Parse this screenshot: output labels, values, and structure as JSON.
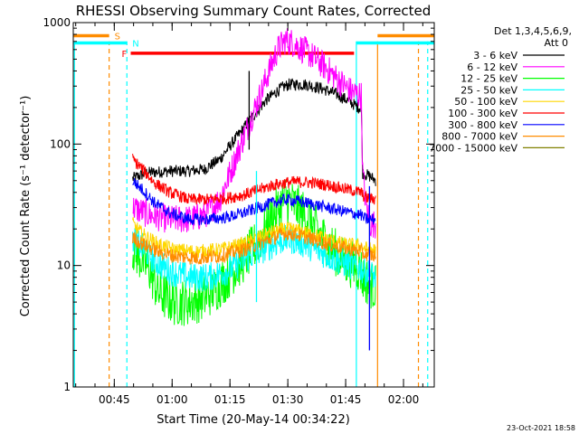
{
  "chart_data": {
    "type": "line",
    "title": "RHESSI Observing Summary Count Rates, Corrected",
    "xlabel": "Start Time (20-May-14 00:34:22)",
    "ylabel": "Corrected Count Rate (s⁻¹ detector⁻¹)",
    "x_unit": "minutes after 00:34:22 UT",
    "xlim": [
      0,
      93.6
    ],
    "ylim": [
      1,
      1000
    ],
    "yscale": "log",
    "yticks": [
      1,
      10,
      100,
      1000
    ],
    "ytick_labels": [
      "1",
      "10",
      "100",
      "1000"
    ],
    "xticks": [
      10.63,
      25.63,
      40.63,
      55.63,
      70.63,
      85.63
    ],
    "xtick_labels": [
      "00:45",
      "01:00",
      "01:15",
      "01:30",
      "01:45",
      "02:00"
    ],
    "legend_header": [
      "Det 1,3,4,5,6,9,",
      "Att 0"
    ],
    "legend_position": "right",
    "timestamp": "23-Oct-2021 18:58",
    "series": [
      {
        "name": "3 - 6 keV",
        "color": "#000000",
        "noise": 0.05,
        "points": [
          [
            15.4,
            52
          ],
          [
            19,
            58
          ],
          [
            25,
            60
          ],
          [
            30,
            60
          ],
          [
            34,
            62
          ],
          [
            38,
            75
          ],
          [
            42,
            110
          ],
          [
            46,
            160
          ],
          [
            50,
            230
          ],
          [
            54,
            290
          ],
          [
            56,
            310
          ],
          [
            60,
            310
          ],
          [
            64,
            290
          ],
          [
            68,
            260
          ],
          [
            71,
            230
          ],
          [
            74,
            200
          ],
          [
            74.7,
            200
          ],
          [
            75,
            58
          ],
          [
            77,
            54
          ],
          [
            78.5,
            50
          ]
        ]
      },
      {
        "name": "6 - 12 keV",
        "color": "#ff00ff",
        "noise": 0.12,
        "points": [
          [
            15.4,
            30
          ],
          [
            20,
            26
          ],
          [
            25,
            24
          ],
          [
            30,
            24
          ],
          [
            34,
            26
          ],
          [
            38,
            35
          ],
          [
            42,
            75
          ],
          [
            46,
            160
          ],
          [
            49,
            280
          ],
          [
            51,
            420
          ],
          [
            53,
            600
          ],
          [
            55,
            720
          ],
          [
            57,
            680
          ],
          [
            61,
            560
          ],
          [
            65,
            440
          ],
          [
            69,
            330
          ],
          [
            72,
            270
          ],
          [
            74.7,
            250
          ],
          [
            75,
            60
          ],
          [
            76,
            30
          ],
          [
            77,
            22
          ],
          [
            78.5,
            22
          ]
        ]
      },
      {
        "name": "12 - 25 keV",
        "color": "#00ff00",
        "noise": 0.2,
        "points": [
          [
            15.4,
            14
          ],
          [
            18,
            11
          ],
          [
            20,
            9
          ],
          [
            22,
            6
          ],
          [
            26,
            5
          ],
          [
            30,
            5
          ],
          [
            34,
            5.5
          ],
          [
            38,
            7
          ],
          [
            42,
            9.5
          ],
          [
            46,
            13
          ],
          [
            49,
            18
          ],
          [
            52,
            26
          ],
          [
            55,
            36
          ],
          [
            58,
            30
          ],
          [
            61,
            24
          ],
          [
            64,
            18
          ],
          [
            67,
            14
          ],
          [
            70,
            11
          ],
          [
            73,
            10
          ],
          [
            74.7,
            9
          ],
          [
            75,
            8
          ],
          [
            77,
            7
          ],
          [
            78.5,
            6.5
          ]
        ]
      },
      {
        "name": "25 - 50 keV",
        "color": "#00ffff",
        "noise": 0.12,
        "points": [
          [
            15.4,
            17
          ],
          [
            18,
            14
          ],
          [
            21,
            11
          ],
          [
            25,
            9
          ],
          [
            30,
            8
          ],
          [
            35,
            8
          ],
          [
            40,
            9
          ],
          [
            44,
            11
          ],
          [
            48,
            13
          ],
          [
            52,
            15
          ],
          [
            55,
            16.5
          ],
          [
            58,
            16
          ],
          [
            62,
            14
          ],
          [
            66,
            12
          ],
          [
            70,
            10.5
          ],
          [
            74.7,
            9.5
          ],
          [
            75,
            9
          ],
          [
            77,
            8.5
          ],
          [
            78.5,
            8
          ]
        ]
      },
      {
        "name": "50 - 100 keV",
        "color": "#ffd700",
        "noise": 0.06,
        "points": [
          [
            15.4,
            22
          ],
          [
            18,
            18
          ],
          [
            22,
            15
          ],
          [
            26,
            13.5
          ],
          [
            32,
            13
          ],
          [
            38,
            13.5
          ],
          [
            44,
            15
          ],
          [
            48,
            17
          ],
          [
            52,
            19
          ],
          [
            55,
            20
          ],
          [
            58,
            19.5
          ],
          [
            62,
            18
          ],
          [
            66,
            16.5
          ],
          [
            70,
            15
          ],
          [
            74.7,
            14.5
          ],
          [
            75,
            14
          ],
          [
            78.5,
            13.5
          ]
        ]
      },
      {
        "name": "100 - 300 keV",
        "color": "#ff0000",
        "noise": 0.05,
        "points": [
          [
            15.4,
            75
          ],
          [
            18,
            62
          ],
          [
            21,
            48
          ],
          [
            25,
            40
          ],
          [
            30,
            35
          ],
          [
            35,
            35
          ],
          [
            40,
            36
          ],
          [
            44,
            38
          ],
          [
            48,
            42
          ],
          [
            52,
            46
          ],
          [
            55,
            48
          ],
          [
            58,
            49
          ],
          [
            62,
            48
          ],
          [
            66,
            46
          ],
          [
            70,
            43
          ],
          [
            74.7,
            40
          ],
          [
            75,
            38
          ],
          [
            76,
            36
          ],
          [
            78.5,
            35
          ]
        ]
      },
      {
        "name": "300 - 800 keV",
        "color": "#0000ff",
        "noise": 0.05,
        "points": [
          [
            15.4,
            50
          ],
          [
            18,
            42
          ],
          [
            21,
            33
          ],
          [
            25,
            27
          ],
          [
            30,
            24
          ],
          [
            35,
            24
          ],
          [
            40,
            25
          ],
          [
            44,
            27
          ],
          [
            48,
            30
          ],
          [
            52,
            33
          ],
          [
            55,
            35
          ],
          [
            58,
            34
          ],
          [
            62,
            32
          ],
          [
            66,
            30
          ],
          [
            70,
            28
          ],
          [
            74.7,
            26
          ],
          [
            75,
            25
          ],
          [
            76,
            24
          ],
          [
            78.5,
            24
          ]
        ]
      },
      {
        "name": "800 - 7000 keV",
        "color": "#ff8c00",
        "noise": 0.06,
        "points": [
          [
            15.4,
            17
          ],
          [
            18,
            15
          ],
          [
            22,
            13
          ],
          [
            26,
            12
          ],
          [
            32,
            11.5
          ],
          [
            38,
            12
          ],
          [
            44,
            13.5
          ],
          [
            48,
            15
          ],
          [
            52,
            17
          ],
          [
            55,
            18.5
          ],
          [
            58,
            18
          ],
          [
            62,
            16.5
          ],
          [
            66,
            15
          ],
          [
            70,
            14
          ],
          [
            74.7,
            13
          ],
          [
            75,
            12.5
          ],
          [
            78.5,
            12
          ]
        ]
      },
      {
        "name": "7000 - 15000 keV",
        "color": "#808000",
        "noise": 0,
        "points": []
      }
    ],
    "spikes": [
      {
        "x": 47.5,
        "y_top": 60,
        "y_bottom": 5,
        "color": "#00ffff"
      },
      {
        "x": 45.6,
        "y_top": 400,
        "y_bottom": 90,
        "color": "#000000"
      },
      {
        "x": 76.8,
        "y_top": 45,
        "y_bottom": 2,
        "color": "#0000ff"
      }
    ],
    "flag_lines": [
      {
        "x": 9.3,
        "color": "#ff8c00",
        "style": "dashed",
        "y_from": 1,
        "y_to": 700
      },
      {
        "x": 13.9,
        "color": "#00ffff",
        "style": "dashed",
        "y_from": 1,
        "y_to": 700
      },
      {
        "x": 0.3,
        "color": "#00ffff",
        "style": "solid",
        "y_from": 1,
        "y_to": 700
      },
      {
        "x": 73.4,
        "color": "#00ffff",
        "style": "solid",
        "y_from": 1,
        "y_to": 700
      },
      {
        "x": 78.9,
        "color": "#ff8c00",
        "style": "solid",
        "y_from": 1,
        "y_to": 700
      },
      {
        "x": 91.9,
        "color": "#00ffff",
        "style": "dashed",
        "y_from": 1,
        "y_to": 700
      },
      {
        "x": 89.5,
        "color": "#ff8c00",
        "style": "dashed",
        "y_from": 1,
        "y_to": 700
      }
    ],
    "flag_bars": [
      {
        "label": "S",
        "color": "#ff8c00",
        "y": 780,
        "segments": [
          [
            0,
            9.3
          ],
          [
            78.9,
            93.6
          ]
        ]
      },
      {
        "label": "N",
        "color": "#00ffff",
        "y": 680,
        "segments": [
          [
            0,
            13.9
          ],
          [
            73.4,
            93.6
          ]
        ]
      },
      {
        "label": "F",
        "color": "#ff0000",
        "y": 560,
        "segments": [
          [
            14.9,
            72.8
          ]
        ]
      }
    ]
  }
}
